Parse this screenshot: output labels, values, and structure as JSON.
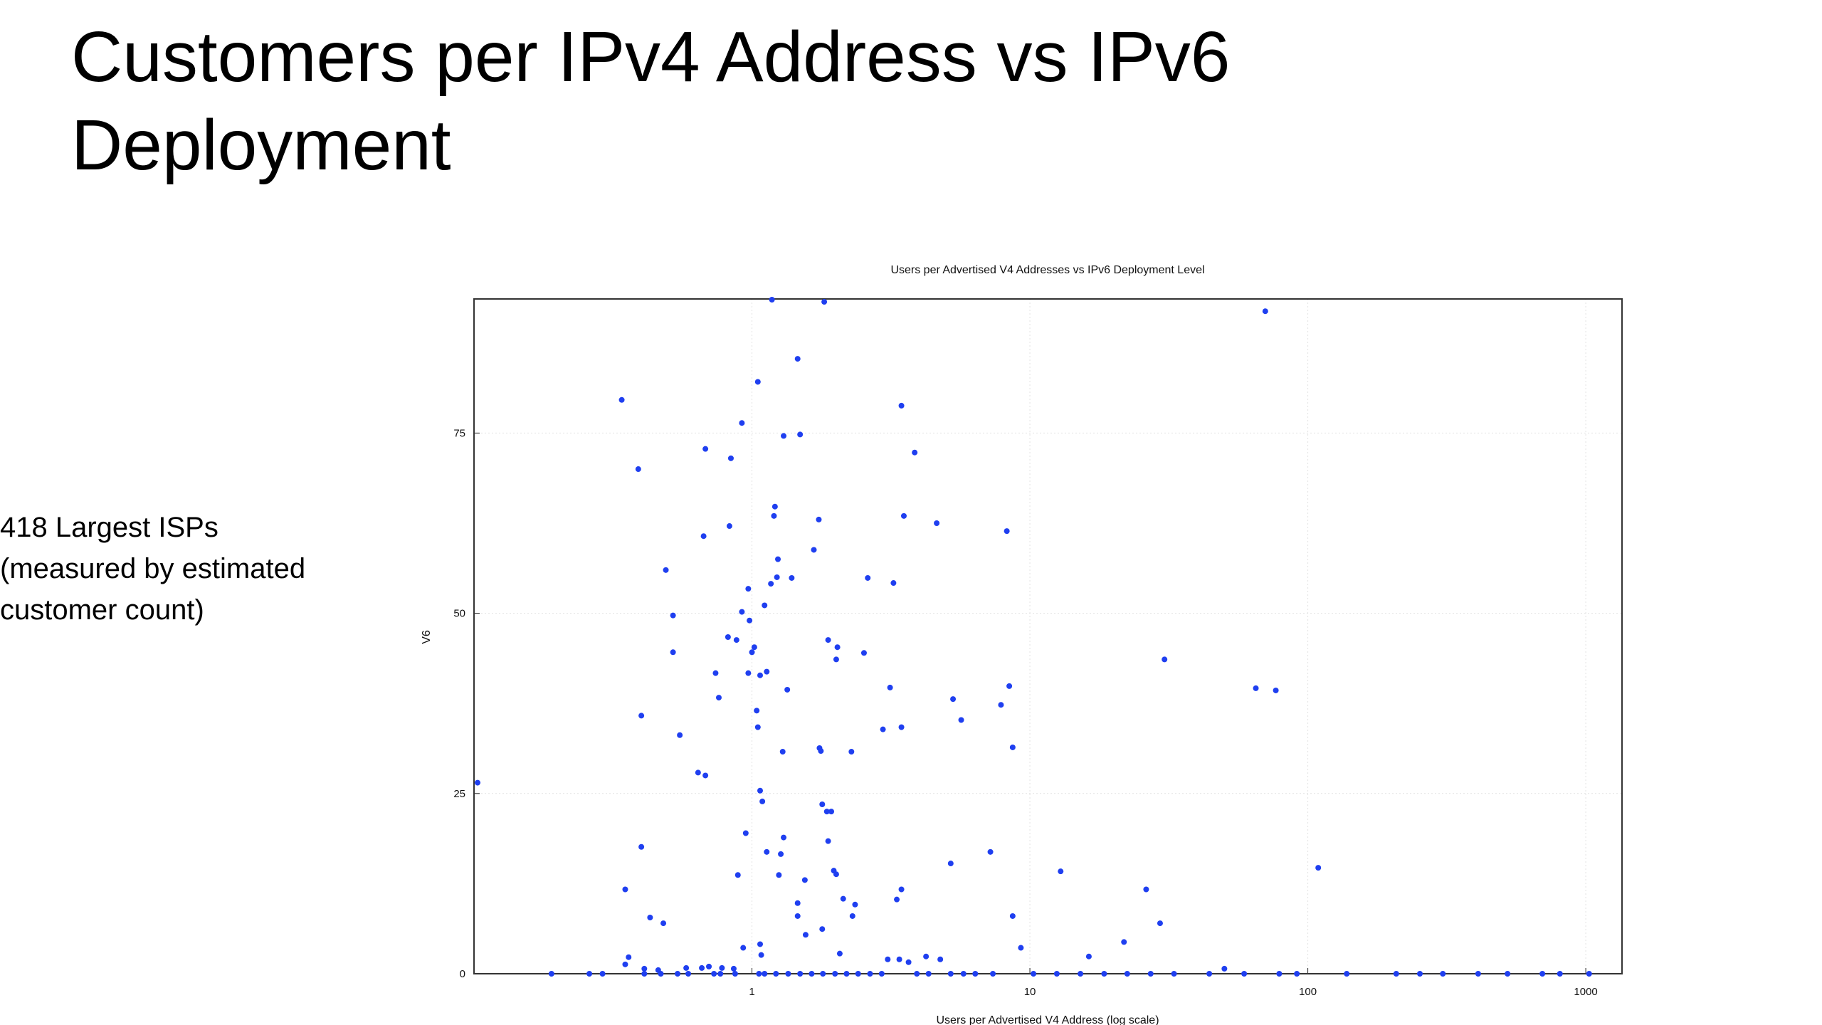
{
  "slide": {
    "title": "Customers per IPv4 Address vs IPv6 Deployment",
    "note": [
      "418 Largest ISPs",
      "(measured by estimated",
      "customer count)"
    ]
  },
  "chart_data": {
    "type": "scatter",
    "title": "Users per Advertised V4 Addresses vs IPv6 Deployment Level",
    "xlabel": "Users per Advertised V4 Address (log scale)",
    "ylabel": "V6",
    "x_log": true,
    "grid": true,
    "color": "#1f3ff0",
    "xlim": [
      0.1,
      1350
    ],
    "ylim": [
      0,
      93.6
    ],
    "xticks": [
      1,
      10,
      100,
      1000
    ],
    "yticks": [
      0,
      25,
      50,
      75
    ],
    "x": [
      0.103,
      0.34,
      0.39,
      0.4,
      0.4,
      0.35,
      0.43,
      0.48,
      0.49,
      0.52,
      0.52,
      0.55,
      0.68,
      0.67,
      0.64,
      0.68,
      0.74,
      0.76,
      0.84,
      0.83,
      0.82,
      0.88,
      0.92,
      0.92,
      0.97,
      0.98,
      1.0,
      1.02,
      0.97,
      0.95,
      0.89,
      0.93,
      1.05,
      1.04,
      1.05,
      1.07,
      1.13,
      1.07,
      1.09,
      1.11,
      1.17,
      1.13,
      1.18,
      1.21,
      1.2,
      1.24,
      1.23,
      1.34,
      1.29,
      1.3,
      1.3,
      1.27,
      1.25,
      1.39,
      1.46,
      1.49,
      1.46,
      1.46,
      1.56,
      1.55,
      1.67,
      1.74,
      1.75,
      1.77,
      1.79,
      1.82,
      1.88,
      1.86,
      1.93,
      1.88,
      1.97,
      2.01,
      2.03,
      2.01,
      1.79,
      2.07,
      2.13,
      2.28,
      2.35,
      2.3,
      2.53,
      2.61,
      2.96,
      3.14,
      3.23,
      3.32,
      3.45,
      3.45,
      3.45,
      3.52,
      3.85,
      4.62,
      5.19,
      5.29,
      5.66,
      7.21,
      7.87,
      8.26,
      8.43,
      8.67,
      8.67,
      9.28,
      12.9,
      16.3,
      21.8,
      26.2,
      29.4,
      30.5,
      65.0,
      70.3,
      76.7,
      109,
      0.19,
      0.26,
      0.29,
      0.41,
      0.47,
      0.54,
      0.59,
      0.73,
      0.77,
      0.87,
      1.06,
      1.11,
      1.22,
      1.35,
      1.49,
      1.64,
      1.8,
      1.99,
      2.19,
      2.41,
      2.66,
      2.93,
      3.92,
      4.32,
      5.19,
      5.77,
      6.36,
      7.36,
      10.3,
      12.5,
      15.2,
      18.5,
      22.4,
      27.2,
      33.0,
      44.2,
      59.0,
      78.9,
      91.3,
      138,
      208,
      253,
      306,
      410,
      523,
      698,
      807,
      1028,
      0.35,
      0.36,
      0.41,
      0.46,
      0.58,
      0.66,
      0.7,
      0.78,
      0.86,
      1.07,
      1.08,
      3.08,
      3.39,
      3.66,
      4.23,
      4.76,
      50.1
    ],
    "values": [
      26.5,
      79.6,
      70.0,
      35.8,
      17.6,
      11.7,
      7.8,
      7.0,
      56.0,
      49.7,
      44.6,
      33.1,
      72.8,
      60.7,
      27.9,
      27.5,
      41.7,
      38.3,
      71.5,
      62.1,
      46.7,
      46.3,
      76.4,
      50.2,
      53.4,
      49.0,
      44.6,
      45.3,
      41.7,
      19.5,
      13.7,
      3.6,
      82.1,
      36.5,
      34.2,
      41.4,
      41.9,
      25.4,
      23.9,
      51.1,
      54.1,
      16.9,
      93.5,
      64.8,
      63.5,
      57.5,
      55.0,
      39.4,
      30.8,
      74.6,
      18.9,
      16.6,
      13.7,
      54.9,
      85.3,
      74.8,
      9.8,
      8.0,
      5.4,
      13.0,
      58.8,
      63.0,
      31.3,
      30.9,
      23.5,
      93.2,
      46.3,
      22.5,
      22.5,
      18.4,
      14.3,
      13.8,
      45.3,
      43.6,
      6.2,
      2.8,
      10.4,
      30.8,
      9.6,
      8.0,
      44.5,
      54.9,
      33.9,
      39.7,
      54.2,
      10.3,
      78.8,
      34.2,
      11.7,
      63.5,
      72.3,
      62.5,
      15.3,
      38.1,
      35.2,
      16.9,
      37.3,
      61.4,
      39.9,
      31.4,
      8.0,
      3.6,
      14.2,
      2.4,
      4.4,
      11.7,
      7.0,
      43.6,
      39.6,
      91.9,
      39.3,
      14.7,
      0,
      0,
      0,
      0,
      0,
      0,
      0,
      0,
      0,
      0,
      0,
      0,
      0,
      0,
      0,
      0,
      0,
      0,
      0,
      0,
      0,
      0,
      0,
      0,
      0,
      0,
      0,
      0,
      0,
      0,
      0,
      0,
      0,
      0,
      0,
      0,
      0,
      0,
      0,
      0,
      0,
      0,
      0,
      0,
      0,
      0,
      0,
      0,
      1.3,
      2.3,
      0.7,
      0.5,
      0.8,
      0.8,
      1.0,
      0.8,
      0.7,
      4.1,
      2.6,
      2.0,
      2.0,
      1.6,
      2.4,
      2.0,
      0.7
    ]
  }
}
